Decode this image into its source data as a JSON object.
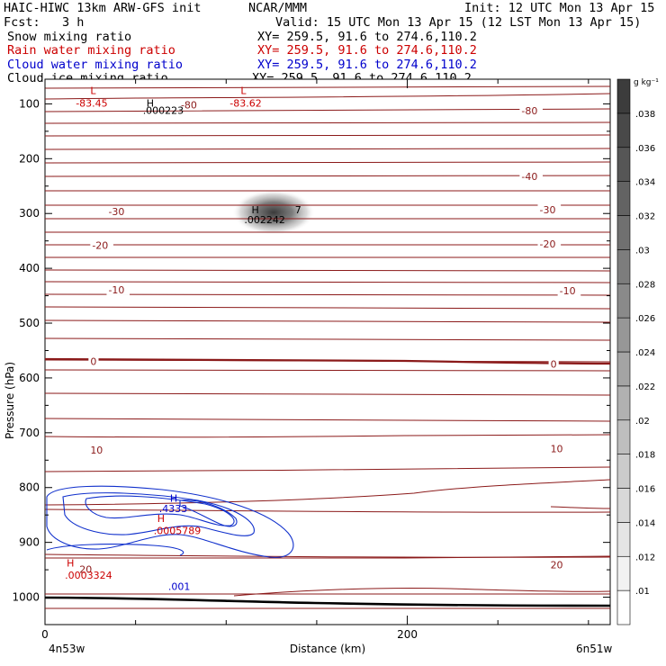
{
  "header": {
    "title_left": "HAIC-HIWC 13km ARW-GFS init",
    "org": "NCAR/MMM",
    "init": "Init: 12 UTC Mon 13 Apr 15",
    "fcst": "Fcst:   3 h",
    "valid": "Valid: 15 UTC Mon 13 Apr 15 (12 LST Mon 13 Apr 15)",
    "fields": [
      {
        "name": "Snow mixing ratio",
        "xy": "XY= 259.5, 91.6 to 274.6,110.2",
        "color": "#000000"
      },
      {
        "name": "Rain water mixing ratio",
        "xy": "XY= 259.5, 91.6 to 274.6,110.2",
        "color": "#cc0000"
      },
      {
        "name": "Cloud water mixing ratio",
        "xy": "XY= 259.5, 91.6 to 274.6,110.2",
        "color": "#0000cc"
      },
      {
        "name": "Cloud ice mixing ratio",
        "xy": "XY= 259.5, 91.6 to 274.6,110.2",
        "color": "#000000"
      }
    ]
  },
  "chart_data": {
    "type": "contour-cross-section",
    "xlabel": "Distance (km)",
    "ylabel": "Pressure (hPa)",
    "xlim": [
      0,
      312
    ],
    "ylim": [
      1050,
      55
    ],
    "x_ticks": [
      0,
      200
    ],
    "y_ticks": [
      100,
      200,
      300,
      400,
      500,
      600,
      700,
      800,
      900,
      1000
    ],
    "x_end_labels": {
      "left": "4n53w",
      "right": "6n51w"
    },
    "colorbar": {
      "units": "g kg⁻¹",
      "levels": [
        ".01",
        ".012",
        ".014",
        ".016",
        ".018",
        ".02",
        ".022",
        ".024",
        ".026",
        ".028",
        ".03",
        ".032",
        ".034",
        ".036",
        ".038"
      ]
    },
    "temperature_labels": [
      {
        "text": "-80",
        "x": 75,
        "p": 107
      },
      {
        "text": "-80",
        "x": 263,
        "p": 117
      },
      {
        "text": "-40",
        "x": 263,
        "p": 237
      },
      {
        "text": "-30",
        "x": 35,
        "p": 301
      },
      {
        "text": "-30",
        "x": 273,
        "p": 298
      },
      {
        "text": "-20",
        "x": 26,
        "p": 363
      },
      {
        "text": "-20",
        "x": 273,
        "p": 360
      },
      {
        "text": "-10",
        "x": 35,
        "p": 444
      },
      {
        "text": "-10",
        "x": 284,
        "p": 446
      },
      {
        "text": "0",
        "x": 25,
        "p": 575
      },
      {
        "text": "0",
        "x": 279,
        "p": 580
      },
      {
        "text": "10",
        "x": 25,
        "p": 736
      },
      {
        "text": "10",
        "x": 279,
        "p": 734
      },
      {
        "text": "20",
        "x": 19,
        "p": 954
      },
      {
        "text": "20",
        "x": 279,
        "p": 946
      }
    ],
    "extrema_labels": [
      {
        "text": "L",
        "x": 25,
        "p": 82,
        "color": "#cc0000"
      },
      {
        "text": "-83.45",
        "x": 17,
        "p": 105,
        "color": "#cc0000"
      },
      {
        "text": "H",
        "x": 56,
        "p": 105,
        "color": "#000000"
      },
      {
        "text": ".000223",
        "x": 54,
        "p": 118,
        "color": "#000000"
      },
      {
        "text": "L",
        "x": 108,
        "p": 82,
        "color": "#cc0000"
      },
      {
        "text": "-83.62",
        "x": 102,
        "p": 105,
        "color": "#cc0000"
      },
      {
        "text": "H",
        "x": 114,
        "p": 300,
        "color": "#000000"
      },
      {
        "text": ".002242",
        "x": 110,
        "p": 318,
        "color": "#000000"
      },
      {
        "text": "7",
        "x": 138,
        "p": 300,
        "color": "#000000"
      },
      {
        "text": "H",
        "x": 69,
        "p": 826,
        "color": "#0000cc"
      },
      {
        "text": ".4333",
        "x": 63,
        "p": 845,
        "color": "#0000cc"
      },
      {
        "text": "H",
        "x": 62,
        "p": 863,
        "color": "#cc0000"
      },
      {
        "text": ".0005789",
        "x": 60,
        "p": 885,
        "color": "#cc0000"
      },
      {
        "text": "H",
        "x": 12,
        "p": 944,
        "color": "#cc0000"
      },
      {
        "text": ".0003324",
        "x": 11,
        "p": 966,
        "color": "#cc0000"
      },
      {
        "text": ".001",
        "x": 68,
        "p": 987,
        "color": "#0000cc"
      }
    ]
  }
}
